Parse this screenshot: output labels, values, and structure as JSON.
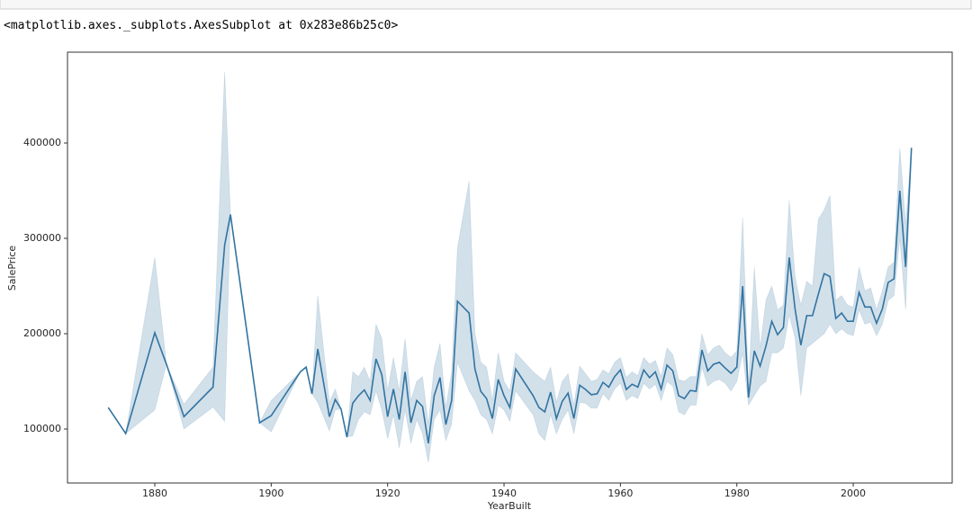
{
  "output_text": "<matplotlib.axes._subplots.AxesSubplot at 0x283e86b25c0>",
  "chart_data": {
    "type": "line",
    "x_label": "YearBuilt",
    "y_label": "SalePrice",
    "xlim": [
      1865,
      2017
    ],
    "ylim": [
      43400,
      495300
    ],
    "xticks": [
      1880,
      1900,
      1920,
      1940,
      1960,
      1980,
      2000
    ],
    "yticks": [
      100000,
      200000,
      300000,
      400000
    ],
    "x": [
      1872,
      1875,
      1880,
      1882,
      1885,
      1890,
      1892,
      1893,
      1898,
      1900,
      1905,
      1906,
      1907,
      1908,
      1910,
      1911,
      1912,
      1913,
      1914,
      1915,
      1916,
      1917,
      1918,
      1919,
      1920,
      1921,
      1922,
      1923,
      1924,
      1925,
      1926,
      1927,
      1928,
      1929,
      1930,
      1931,
      1932,
      1934,
      1935,
      1936,
      1937,
      1938,
      1939,
      1940,
      1941,
      1942,
      1945,
      1946,
      1947,
      1948,
      1949,
      1950,
      1951,
      1952,
      1953,
      1954,
      1955,
      1956,
      1957,
      1958,
      1959,
      1960,
      1961,
      1962,
      1963,
      1964,
      1965,
      1966,
      1967,
      1968,
      1969,
      1970,
      1971,
      1972,
      1973,
      1974,
      1975,
      1976,
      1977,
      1978,
      1979,
      1980,
      1981,
      1982,
      1983,
      1984,
      1985,
      1986,
      1987,
      1988,
      1989,
      1990,
      1991,
      1992,
      1993,
      1994,
      1995,
      1996,
      1997,
      1998,
      1999,
      2000,
      2001,
      2002,
      2003,
      2004,
      2005,
      2006,
      2007,
      2008,
      2009,
      2010
    ],
    "series": [
      {
        "color": "#3274a1",
        "values": [
          122600,
          95300,
          201000,
          168000,
          113000,
          144000,
          293000,
          325000,
          106600,
          114000,
          160000,
          165000,
          137000,
          184000,
          113000,
          131000,
          121000,
          91500,
          127000,
          135000,
          141000,
          130000,
          173600,
          157000,
          113000,
          142000,
          110000,
          160000,
          106600,
          130000,
          123600,
          85000,
          135000,
          154000,
          104700,
          130000,
          234000,
          221700,
          163000,
          139600,
          132000,
          111000,
          152000,
          135000,
          122600,
          163000,
          135000,
          122600,
          118000,
          138700,
          111000,
          129000,
          137700,
          111000,
          146000,
          141500,
          136000,
          137000,
          149000,
          144000,
          155000,
          162000,
          141500,
          147000,
          144000,
          162000,
          154000,
          160000,
          142000,
          167000,
          161000,
          135000,
          132000,
          140500,
          139600,
          183000,
          161000,
          168000,
          170000,
          164000,
          158500,
          165000,
          250000,
          133000,
          182000,
          166000,
          187000,
          213000,
          199000,
          206600,
          280000,
          226000,
          188000,
          219000,
          219000,
          241500,
          263000,
          260000,
          216000,
          221700,
          213000,
          213000,
          243400,
          228000,
          228000,
          211000,
          226000,
          253800,
          257500,
          350000,
          270000,
          395000
        ],
        "ci_lower": [
          122600,
          95300,
          120000,
          168000,
          100000,
          123000,
          108000,
          325000,
          106600,
          97000,
          160000,
          165000,
          137000,
          128000,
          98000,
          120000,
          121000,
          91500,
          93000,
          110000,
          118000,
          115000,
          140000,
          120000,
          90000,
          115000,
          80000,
          120000,
          85000,
          110000,
          95000,
          65000,
          110000,
          120000,
          88000,
          105000,
          170000,
          140000,
          130000,
          115000,
          110000,
          95000,
          125000,
          120000,
          108000,
          140000,
          115000,
          95000,
          88000,
          115000,
          95000,
          110000,
          120000,
          95000,
          128000,
          127000,
          122000,
          122000,
          137000,
          130000,
          142000,
          148000,
          130000,
          135000,
          132000,
          148000,
          142000,
          147000,
          130000,
          150000,
          145000,
          118000,
          115000,
          125000,
          125000,
          165000,
          145000,
          150000,
          152000,
          148000,
          140000,
          150000,
          180000,
          125000,
          135000,
          145000,
          150000,
          180000,
          180000,
          185000,
          220000,
          195000,
          135000,
          185000,
          190000,
          195000,
          200000,
          210000,
          200000,
          205000,
          200000,
          198000,
          225000,
          210000,
          212000,
          198000,
          210000,
          235000,
          240000,
          300000,
          225000,
          395000
        ],
        "ci_upper": [
          122600,
          95300,
          280000,
          168000,
          126000,
          165000,
          475000,
          325000,
          106600,
          130000,
          160000,
          165000,
          137000,
          240000,
          128000,
          142000,
          121000,
          91500,
          160000,
          155000,
          165000,
          150000,
          210000,
          195000,
          140000,
          175000,
          140000,
          195000,
          130000,
          150000,
          155000,
          105000,
          165000,
          190000,
          122000,
          160000,
          290000,
          360000,
          200000,
          170000,
          165000,
          130000,
          180000,
          150000,
          140000,
          180000,
          160000,
          155000,
          150000,
          165000,
          128000,
          150000,
          158000,
          125000,
          166000,
          158000,
          150000,
          152000,
          162000,
          158000,
          170000,
          175000,
          154000,
          160000,
          156000,
          175000,
          168000,
          172000,
          155000,
          185000,
          178000,
          152000,
          150000,
          155000,
          155000,
          200000,
          178000,
          185000,
          188000,
          180000,
          175000,
          182000,
          322000,
          145000,
          270000,
          185000,
          235000,
          250000,
          225000,
          230000,
          340000,
          260000,
          230000,
          255000,
          250000,
          320000,
          330000,
          345000,
          235000,
          240000,
          230000,
          228000,
          270000,
          245000,
          248000,
          225000,
          245000,
          270000,
          275000,
          395000,
          315000,
          395000
        ]
      }
    ]
  }
}
